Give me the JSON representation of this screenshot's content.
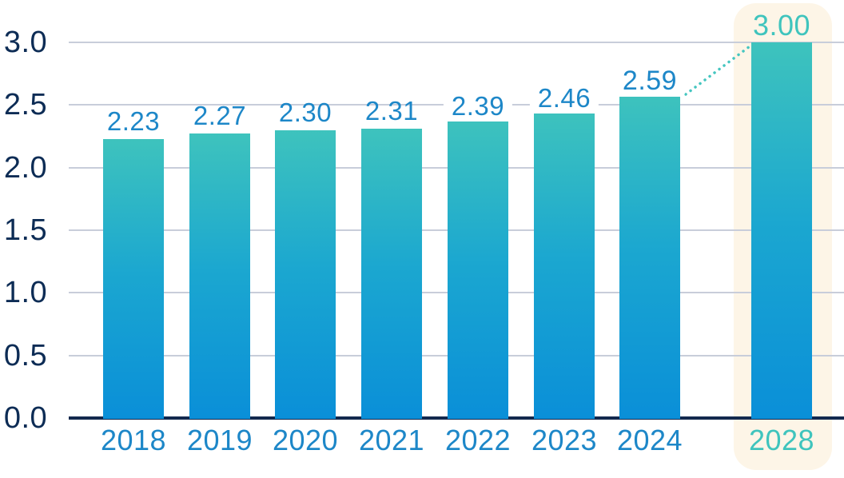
{
  "chart_data": {
    "type": "bar",
    "title": "",
    "xlabel": "",
    "ylabel": "",
    "categories": [
      "2018",
      "2019",
      "2020",
      "2021",
      "2022",
      "2023",
      "2024",
      "2028"
    ],
    "values": [
      2.23,
      2.27,
      2.3,
      2.31,
      2.39,
      2.46,
      2.59,
      3.0
    ],
    "value_labels": [
      "2.23",
      "2.27",
      "2.30",
      "2.31",
      "2.39",
      "2.46",
      "2.59",
      "3.00"
    ],
    "ylim": [
      0,
      3.0
    ],
    "ytick_labels": [
      "3.0",
      "2.5",
      "2.0",
      "1.5",
      "1.0",
      "0.5",
      "0.0"
    ],
    "ytick_values": [
      3.0,
      2.5,
      2.0,
      1.5,
      1.0,
      0.5,
      0.0
    ],
    "grid": true,
    "legend": false,
    "highlight": {
      "category": "2028",
      "style": "cream rounded panel behind bar and label"
    },
    "boxed_value_labels": [
      "2.39",
      "2.46",
      "2.59"
    ],
    "connector": {
      "description": "dotted line from 2024 value label to top of 2028 bar",
      "style": "dotted"
    },
    "colors": {
      "bar_gradient_top": "#3ec3bd",
      "bar_gradient_mid": "#1ba7d0",
      "bar_gradient_bottom": "#0a8fd8",
      "value_label_blue": "#1d87c8",
      "highlight_teal": "#3fc4bd",
      "axis_label_navy": "#0d2c55",
      "axis_line_navy": "#13294e",
      "gridline": "#c8cdda",
      "highlight_panel_bg": "#fdf5e7",
      "label_box_bg": "#ffffff",
      "connector_dotted": "#45c6c0",
      "background": "#ffffff"
    }
  }
}
